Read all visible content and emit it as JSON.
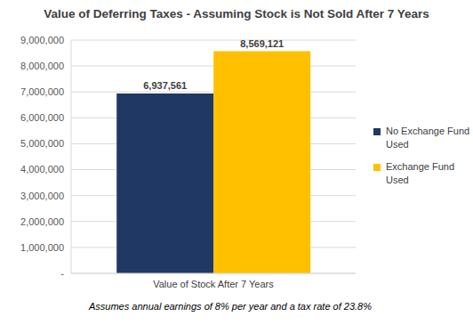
{
  "chart_data": {
    "type": "bar",
    "title": "Value of Deferring Taxes - Assuming Stock is Not Sold After 7 Years",
    "categories": [
      "Value of Stock After 7 Years"
    ],
    "series": [
      {
        "name": "No Exchange Fund Used",
        "color": "#203864",
        "values": [
          6937561
        ],
        "value_labels": [
          "6,937,561"
        ]
      },
      {
        "name": "Exchange Fund Used",
        "color": "#FFC000",
        "values": [
          8569121
        ],
        "value_labels": [
          "8,569,121"
        ]
      }
    ],
    "ylim": [
      0,
      9000000
    ],
    "yticks": [
      {
        "value": 0,
        "label": "-"
      },
      {
        "value": 1000000,
        "label": "1,000,000"
      },
      {
        "value": 2000000,
        "label": "2,000,000"
      },
      {
        "value": 3000000,
        "label": "3,000,000"
      },
      {
        "value": 4000000,
        "label": "4,000,000"
      },
      {
        "value": 5000000,
        "label": "5,000,000"
      },
      {
        "value": 6000000,
        "label": "6,000,000"
      },
      {
        "value": 7000000,
        "label": "7,000,000"
      },
      {
        "value": 8000000,
        "label": "8,000,000"
      },
      {
        "value": 9000000,
        "label": "9,000,000"
      }
    ],
    "grid": true,
    "data_labels": true,
    "legend": "right",
    "annotations": [
      "Assumes annual earnings of 8% per year and a tax rate of 23.8%"
    ]
  }
}
